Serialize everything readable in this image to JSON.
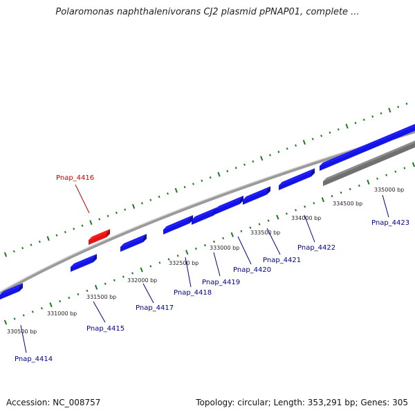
{
  "title": "Polaromonas naphthalenivorans CJ2 plasmid pPNAP01, complete ...",
  "footer": {
    "accession": "Accession: NC_008757",
    "summary": "Topology: circular; Length: 353,291 bp; Genes: 305"
  },
  "colors": {
    "tick": "#1a7a1a",
    "gene_forward": "#1414e6",
    "gene_highlight": "#e61414",
    "gene_other": "#707070",
    "backbone": "#8a8a8a",
    "label_normal": "#00008b",
    "label_highlight": "#cc0000"
  },
  "scale_ticks": [
    {
      "label": "330500 bp"
    },
    {
      "label": "331000 bp"
    },
    {
      "label": "331500 bp"
    },
    {
      "label": "332000 bp"
    },
    {
      "label": "332500 bp"
    },
    {
      "label": "333000 bp"
    },
    {
      "label": "333500 bp"
    },
    {
      "label": "334000 bp"
    },
    {
      "label": "334500 bp"
    },
    {
      "label": "335000 bp"
    }
  ],
  "gene_labels": [
    {
      "label": "Pnap_4414",
      "highlight": false
    },
    {
      "label": "Pnap_4415",
      "highlight": false
    },
    {
      "label": "Pnap_4416",
      "highlight": true
    },
    {
      "label": "Pnap_4417",
      "highlight": false
    },
    {
      "label": "Pnap_4418",
      "highlight": false
    },
    {
      "label": "Pnap_4419",
      "highlight": false
    },
    {
      "label": "Pnap_4420",
      "highlight": false
    },
    {
      "label": "Pnap_4421",
      "highlight": false
    },
    {
      "label": "Pnap_4422",
      "highlight": false
    },
    {
      "label": "Pnap_4423",
      "highlight": false
    }
  ]
}
